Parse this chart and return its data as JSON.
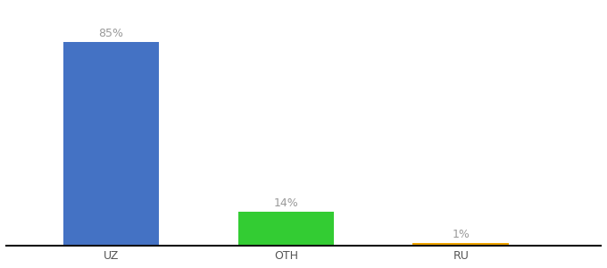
{
  "categories": [
    "UZ",
    "OTH",
    "RU"
  ],
  "values": [
    85,
    14,
    1
  ],
  "bar_colors": [
    "#4472c4",
    "#33cc33",
    "#f0a500"
  ],
  "label_texts": [
    "85%",
    "14%",
    "1%"
  ],
  "ylim": [
    0,
    100
  ],
  "background_color": "#ffffff",
  "label_color": "#999999",
  "bar_width": 0.55,
  "title_fontsize": 10,
  "tick_fontsize": 9,
  "label_fontsize": 9,
  "x_positions": [
    1,
    2,
    3
  ],
  "xlim": [
    0.4,
    3.8
  ]
}
